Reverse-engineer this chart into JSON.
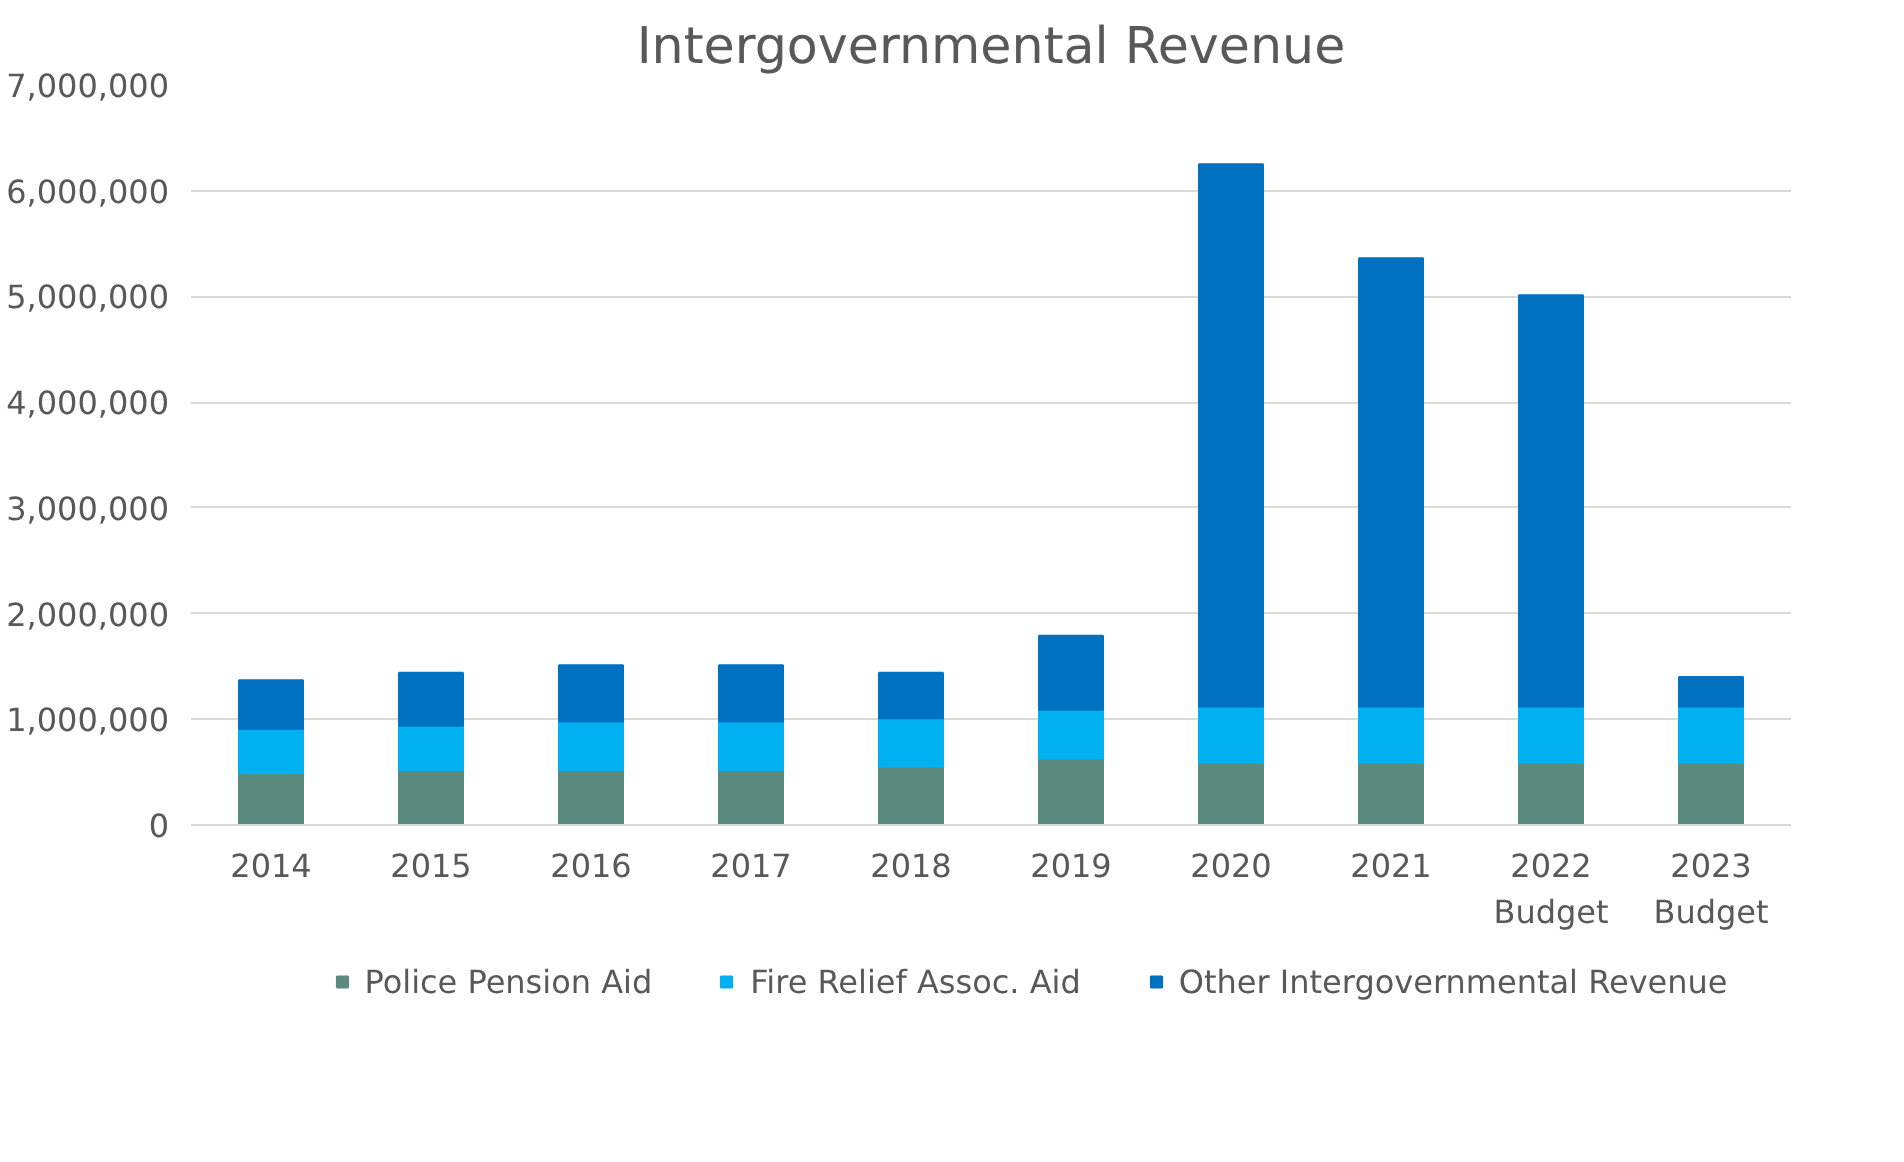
{
  "chart_data": {
    "type": "bar",
    "stacked": true,
    "title": "Intergovernmental Revenue",
    "categories": [
      "2014",
      "2015",
      "2016",
      "2017",
      "2018",
      "2019",
      "2020",
      "2021",
      "2022\nBudget",
      "2023\nBudget"
    ],
    "series": [
      {
        "name": "Police Pension Aid",
        "color": "#5b8a7e",
        "values": [
          490000,
          520000,
          520000,
          520000,
          550000,
          630000,
          590000,
          590000,
          590000,
          590000
        ]
      },
      {
        "name": "Fire Relief Assoc. Aid",
        "color": "#00b0f0",
        "values": [
          420000,
          420000,
          460000,
          460000,
          460000,
          460000,
          530000,
          530000,
          530000,
          530000
        ]
      },
      {
        "name": "Other Intergovernmental Revenue",
        "color": "#0070c0",
        "values": [
          460000,
          500000,
          530000,
          530000,
          430000,
          700000,
          5130000,
          4240000,
          3890000,
          280000
        ]
      }
    ],
    "ylim": [
      0,
      7000000
    ],
    "yticks": [
      {
        "value": 0,
        "label": "0"
      },
      {
        "value": 1000000,
        "label": "1,000,000"
      },
      {
        "value": 2000000,
        "label": "2,000,000"
      },
      {
        "value": 3000000,
        "label": "3,000,000"
      },
      {
        "value": 4000000,
        "label": "4,000,000"
      },
      {
        "value": 5000000,
        "label": "5,000,000"
      },
      {
        "value": 6000000,
        "label": "6,000,000"
      },
      {
        "value": 7000000,
        "label": "7,000,000"
      }
    ],
    "grid": "y",
    "legend": "bottom"
  }
}
